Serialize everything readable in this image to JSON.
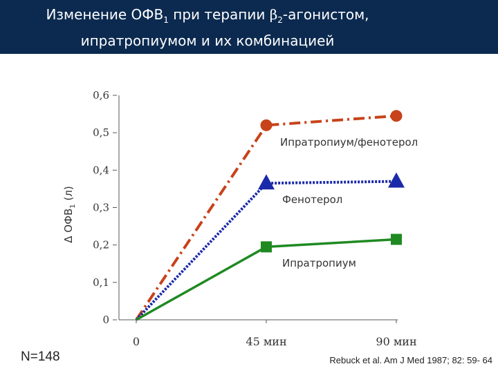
{
  "header": {
    "title_part1": "Изменение ОФВ",
    "title_sub1": "1",
    "title_part2": " при терапии ",
    "title_greek": "β",
    "title_sub2": "2",
    "title_part3": "-агонистом,",
    "title_line2": "ипратропиумом и их комбинацией"
  },
  "footer": {
    "n_label": "N=148",
    "reference": "Rebuck et al. Am J Med 1987; 82: 59- 64"
  },
  "colors": {
    "header_bg": "#0c2a50",
    "combo": "#c8421a",
    "fenoterol": "#1a2aa8",
    "ipratropium": "#1f8a22"
  },
  "chart_data": {
    "type": "line",
    "x": [
      0,
      45,
      90
    ],
    "x_tick_labels": [
      "0",
      "45 мин",
      "90 мин"
    ],
    "ylabel_prefix": "Δ ОФВ",
    "ylabel_sub": "1",
    "ylabel_suffix": " (л)",
    "ylim": [
      0,
      0.6
    ],
    "y_ticks": [
      0,
      0.1,
      0.2,
      0.3,
      0.4,
      0.5,
      0.6
    ],
    "y_tick_labels": [
      "0",
      "0,1",
      "0,2",
      "0,3",
      "0,4",
      "0,5",
      "0,6"
    ],
    "grid": false,
    "series": [
      {
        "name": "Ипратропиум/фенотерол",
        "values": [
          0,
          0.52,
          0.545
        ],
        "color": "#c8421a",
        "marker": "circle",
        "style": "dashdot"
      },
      {
        "name": "Фенотерол",
        "values": [
          0,
          0.365,
          0.37
        ],
        "color": "#1a2aa8",
        "marker": "triangle",
        "style": "dotted"
      },
      {
        "name": "Ипратропиум",
        "values": [
          0,
          0.195,
          0.215
        ],
        "color": "#1f8a22",
        "marker": "square",
        "style": "solid"
      }
    ]
  }
}
